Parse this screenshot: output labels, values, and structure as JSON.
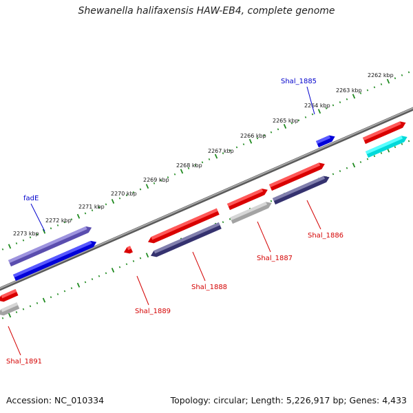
{
  "title": "Shewanella halifaxensis HAW-EB4, complete genome",
  "footer": {
    "accession": "Accession: NC_010334",
    "summary": "Topology: circular; Length: 5,226,917 bp; Genes: 4,433"
  },
  "colors": {
    "backbone": "#8a8a8a",
    "ticks": "#1f8a1f",
    "forward_label": "#0000cc",
    "reverse_label": "#d40000",
    "red_feature": "#ff0000",
    "blue_feature": "#0000ff",
    "purple_feature": "#6a5acd",
    "navy_feature": "#3e3b82",
    "gray_feature": "#c0c0c0",
    "cyan_feature": "#00ffff"
  },
  "scale_labels": [
    "2262 kbp",
    "2263 kbp",
    "2264 kbp",
    "2265 kbp",
    "2266 kbp",
    "2267 kbp",
    "2268 kbp",
    "2269 kbp",
    "2270 kbp",
    "2271 kbp",
    "2272 kbp",
    "2273 kbp"
  ],
  "gene_labels": [
    {
      "key": "shal1885",
      "text": "Shal_1885",
      "strand": "forward"
    },
    {
      "key": "fadE",
      "text": "fadE",
      "strand": "forward"
    },
    {
      "key": "shal1886",
      "text": "Shal_1886",
      "strand": "reverse"
    },
    {
      "key": "shal1887",
      "text": "Shal_1887",
      "strand": "reverse"
    },
    {
      "key": "shal1888",
      "text": "Shal_1888",
      "strand": "reverse"
    },
    {
      "key": "shal1889",
      "text": "Shal_1889",
      "strand": "reverse"
    },
    {
      "key": "shal1891",
      "text": "Shal_1891",
      "strand": "reverse"
    }
  ]
}
